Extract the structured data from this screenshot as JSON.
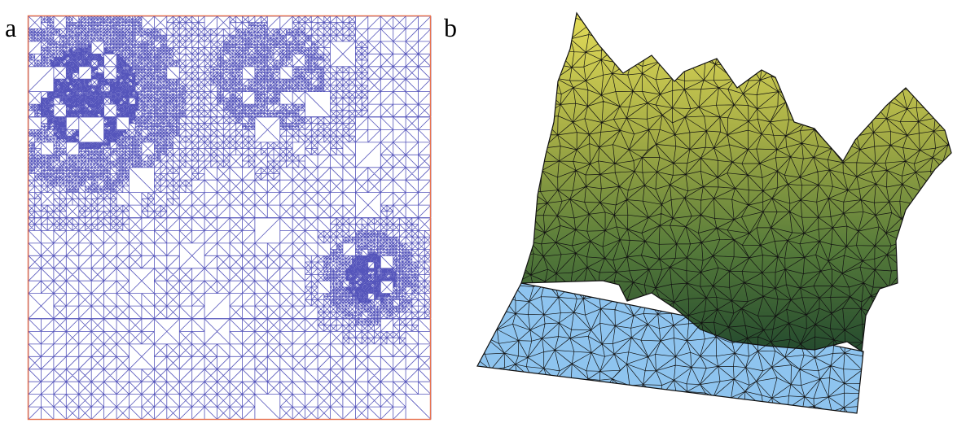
{
  "figure": {
    "panel_a_label": "a",
    "panel_b_label": "b"
  },
  "colors": {
    "mesh_lines": "#5555bb",
    "frame": "#e8734f",
    "surface_high": "#e6df5c",
    "surface_mid": "#8a9a3c",
    "surface_low": "#2f5a33",
    "base_plane": "#8ec4ef",
    "wire": "#111111"
  },
  "icons": []
}
